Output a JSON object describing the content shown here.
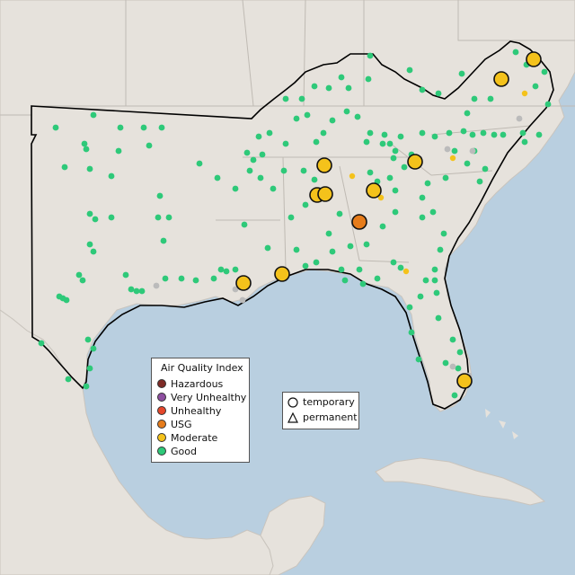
{
  "legend": {
    "title": "Air Quality Index",
    "items": [
      {
        "label": "Hazardous",
        "color": "#7e2b26"
      },
      {
        "label": "Very Unhealthy",
        "color": "#8e4fa0"
      },
      {
        "label": "Unhealthy",
        "color": "#e5472b"
      },
      {
        "label": "USG",
        "color": "#e67c1b"
      },
      {
        "label": "Moderate",
        "color": "#f4c21b"
      },
      {
        "label": "Good",
        "color": "#2ec979"
      }
    ]
  },
  "shape_legend": {
    "items": [
      {
        "label": "temporary",
        "shape": "circle-icon"
      },
      {
        "label": "permanent",
        "shape": "triangle-icon"
      }
    ]
  },
  "colors": {
    "ocean": "#b9cfe0",
    "land": "#e6e2dc",
    "region_outline": "#000000",
    "no_data": "#bbbbbb"
  }
}
